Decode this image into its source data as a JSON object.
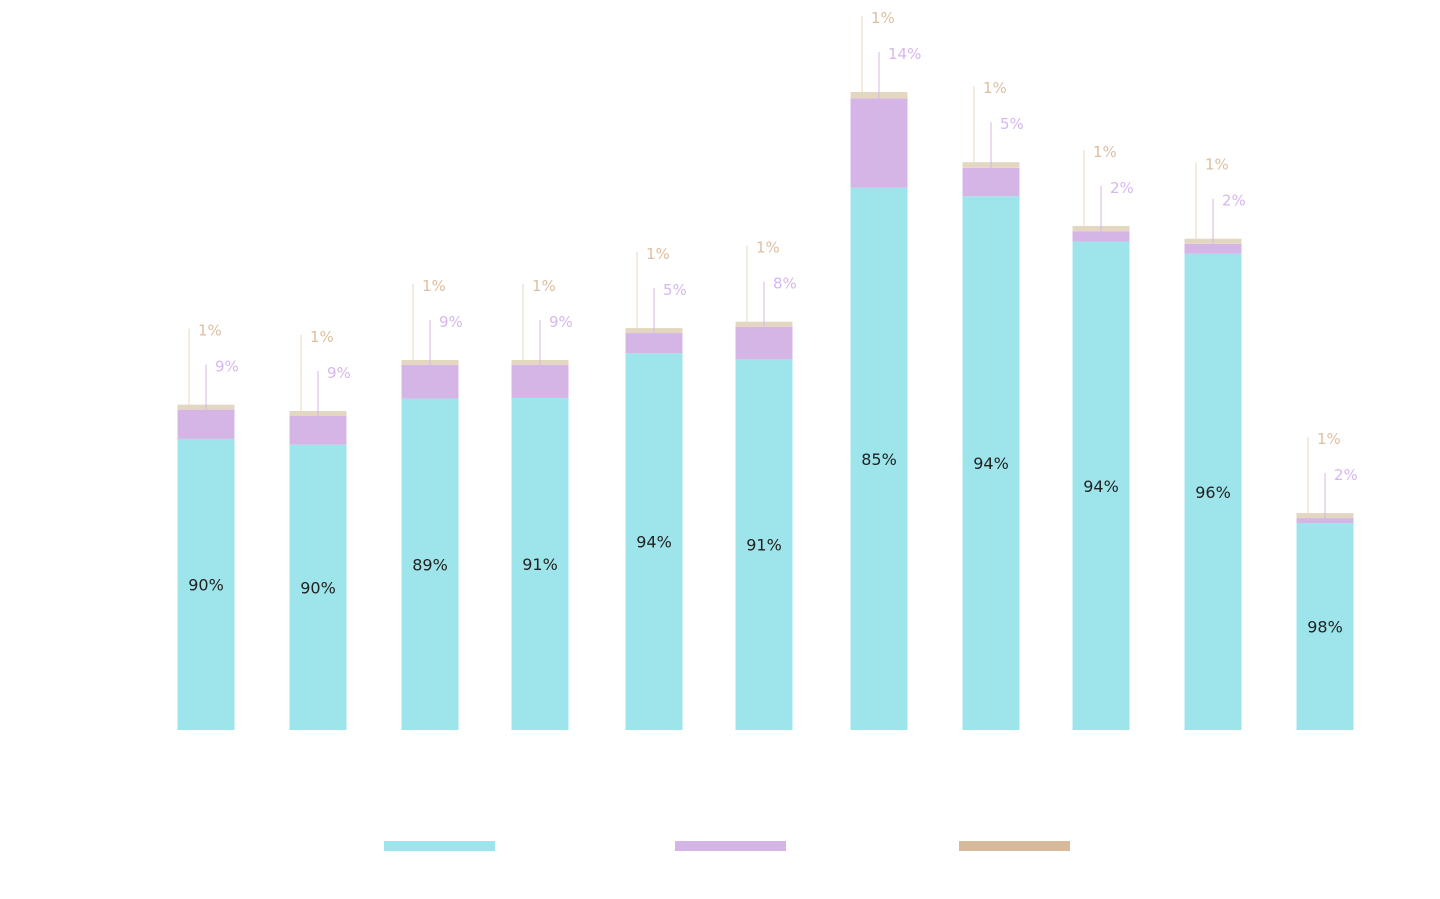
{
  "chart_data": {
    "type": "bar",
    "stacked": true,
    "title": "",
    "xlabel": "",
    "ylabel": "",
    "grid": false,
    "legend_position": "bottom",
    "categories": [
      "",
      "",
      "",
      "",
      "",
      "",
      "",
      "",
      "",
      "",
      ""
    ],
    "relative_totals": [
      51,
      50,
      58,
      58,
      63,
      64,
      100,
      89,
      79,
      77,
      34
    ],
    "series": [
      {
        "name": "",
        "color": "#9ee5eb",
        "values": [
          90,
          90,
          89,
          91,
          94,
          91,
          85,
          94,
          94,
          96,
          98
        ],
        "labels": [
          "90%",
          "90%",
          "89%",
          "91%",
          "94%",
          "91%",
          "85%",
          "94%",
          "94%",
          "96%",
          "98%"
        ]
      },
      {
        "name": "",
        "color": "#d4b5e6",
        "label_color": "#d7b7ee",
        "values": [
          9,
          9,
          9,
          9,
          5,
          8,
          14,
          5,
          2,
          2,
          2
        ],
        "labels": [
          "9%",
          "9%",
          "9%",
          "9%",
          "5%",
          "8%",
          "14%",
          "5%",
          "2%",
          "2%",
          "2%"
        ]
      },
      {
        "name": "",
        "color": "#e4d7c2",
        "legend_color": "#d7b99c",
        "label_color": "#dcbfa0",
        "values": [
          1,
          1,
          1,
          1,
          1,
          1,
          1,
          1,
          1,
          1,
          1
        ],
        "labels": [
          "1%",
          "1%",
          "1%",
          "1%",
          "1%",
          "1%",
          "1%",
          "1%",
          "1%",
          "1%",
          "1%"
        ]
      }
    ]
  }
}
